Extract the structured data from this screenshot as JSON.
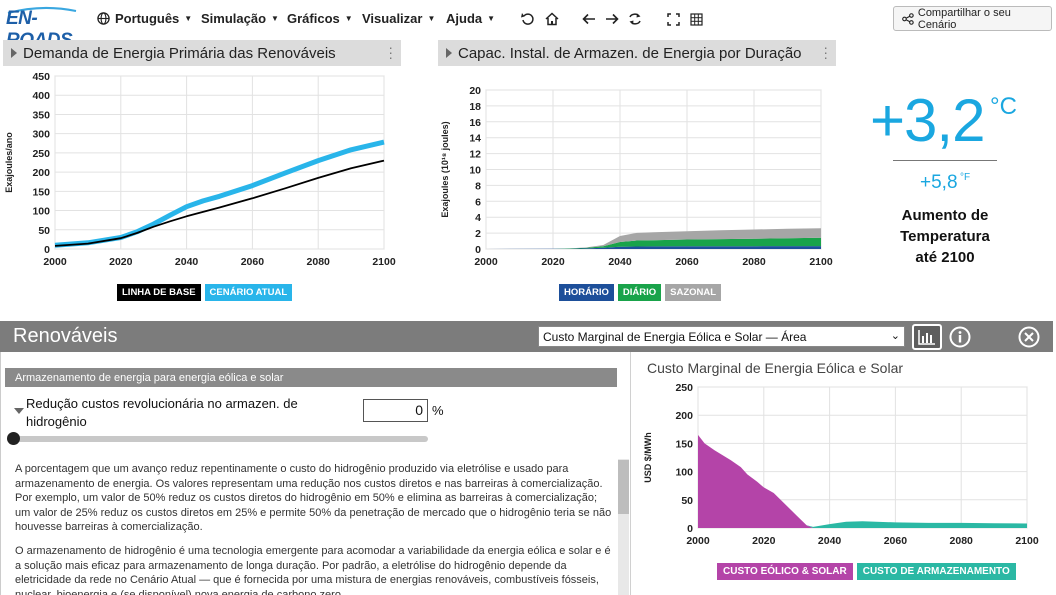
{
  "app": {
    "logo": "EN-ROADS",
    "menu": [
      {
        "label": "Português",
        "icon": "globe-icon"
      },
      {
        "label": "Simulação"
      },
      {
        "label": "Gráficos"
      },
      {
        "label": "Visualizar"
      },
      {
        "label": "Ajuda"
      }
    ],
    "share_label": "Compartilhar o seu Cenário"
  },
  "graph_left": {
    "title": "Demanda de Energia Primária das Renováveis",
    "ylabel": "Exajoules/ano",
    "legend": [
      {
        "label": "LINHA DE BASE",
        "color": "#000000"
      },
      {
        "label": "CENÁRIO ATUAL",
        "color": "#29b5ea"
      }
    ]
  },
  "graph_mid": {
    "title": "Capac. Instal. de Armazen. de Energia por Duração",
    "ylabel": "Exajoules (10¹⁸ joules)",
    "legend": [
      {
        "label": "HORÁRIO",
        "color": "#1d4f9a"
      },
      {
        "label": "DIÁRIO",
        "color": "#19a34a"
      },
      {
        "label": "SAZONAL",
        "color": "#a6a6a6"
      }
    ]
  },
  "temperature": {
    "celsius": "+3,2",
    "celsius_unit": "°C",
    "fahrenheit": "+5,8",
    "fahrenheit_unit": "°F",
    "label_line1": "Aumento de",
    "label_line2": "Temperatura",
    "label_line3": "até 2100"
  },
  "panel": {
    "title": "Renováveis",
    "select_value": "Custo Marginal de Energia Eólica e Solar — Área",
    "subsection": "Armazenamento de energia para energia eólica e solar",
    "slider_title": "Redução custos revolucionária no armazen. de hidrogênio",
    "slider_value": "0",
    "slider_unit": "%",
    "slider_level_percent": 0,
    "desc1": "A porcentagem que um avanço reduz repentinamente o custo do hidrogênio produzido via eletrólise e usado para armazenamento de energia. Os valores representam uma redução nos custos diretos e nas barreiras à comercialização. Por exemplo, um valor de 50% reduz os custos diretos do hidrogênio em 50% e elimina as barreiras à comercialização; um valor de 25% reduz os custos diretos em 25% e permite 50% da penetração de mercado que o hidrogênio teria se não houvesse barreiras à comercialização.",
    "desc2": "O armazenamento de hidrogênio é uma tecnologia emergente para acomodar a variabilidade da energia eólica e solar e é a solução mais eficaz para armazenamento de longa duração. Por padrão, a eletrólise do hidrogênio depende da eletricidade da rede no Cenário Atual — que é fornecida por uma mistura de energias renováveis, combustíveis fósseis, nuclear, bioenergia e (se disponível) nova energia de carbono zero.",
    "right_chart_title": "Custo Marginal de Energia Eólica e Solar",
    "right_ylabel": "USD $/MWh",
    "right_legend": [
      {
        "label": "CUSTO EÓLICO & SOLAR",
        "color": "#b444a8"
      },
      {
        "label": "CUSTO DE ARMAZENAMENTO",
        "color": "#2bb8a4"
      }
    ]
  },
  "chart_data": [
    {
      "type": "line",
      "title": "Demanda de Energia Primária das Renováveis",
      "ylabel": "Exajoules/ano",
      "xlim": [
        2000,
        2100
      ],
      "ylim": [
        0,
        450
      ],
      "xticks": [
        2000,
        2020,
        2040,
        2060,
        2080,
        2100
      ],
      "yticks": [
        0,
        50,
        100,
        150,
        200,
        250,
        300,
        350,
        400,
        450
      ],
      "grid": true,
      "series": [
        {
          "name": "LINHA DE BASE",
          "color": "#000000",
          "x": [
            2000,
            2010,
            2020,
            2025,
            2030,
            2035,
            2040,
            2050,
            2060,
            2070,
            2080,
            2090,
            2100
          ],
          "y": [
            8,
            14,
            28,
            42,
            58,
            72,
            85,
            108,
            132,
            158,
            185,
            210,
            230
          ]
        },
        {
          "name": "CENÁRIO ATUAL",
          "color": "#29b5ea",
          "x": [
            2000,
            2010,
            2020,
            2025,
            2030,
            2035,
            2040,
            2045,
            2050,
            2060,
            2070,
            2080,
            2090,
            2100
          ],
          "y": [
            10,
            16,
            30,
            45,
            65,
            88,
            110,
            125,
            137,
            165,
            198,
            230,
            258,
            278
          ]
        }
      ]
    },
    {
      "type": "area",
      "title": "Capac. Instal. de Armazen. de Energia por Duração",
      "ylabel": "Exajoules (10¹⁸ joules)",
      "xlim": [
        2000,
        2100
      ],
      "ylim": [
        0,
        20
      ],
      "xticks": [
        2000,
        2020,
        2040,
        2060,
        2080,
        2100
      ],
      "yticks": [
        0,
        2,
        4,
        6,
        8,
        10,
        12,
        14,
        16,
        18,
        20
      ],
      "grid": true,
      "stacked": true,
      "x": [
        2000,
        2020,
        2025,
        2030,
        2035,
        2040,
        2045,
        2050,
        2060,
        2070,
        2080,
        2090,
        2100
      ],
      "series": [
        {
          "name": "HORÁRIO",
          "color": "#1d4f9a",
          "values": [
            0,
            0.02,
            0.04,
            0.08,
            0.15,
            0.28,
            0.32,
            0.33,
            0.34,
            0.35,
            0.35,
            0.36,
            0.37
          ]
        },
        {
          "name": "DIÁRIO",
          "color": "#19a34a",
          "values": [
            0,
            0.01,
            0.03,
            0.08,
            0.2,
            0.6,
            0.75,
            0.78,
            0.85,
            0.9,
            0.95,
            1.0,
            1.05
          ]
        },
        {
          "name": "SAZONAL",
          "color": "#a6a6a6",
          "values": [
            0,
            0,
            0.01,
            0.04,
            0.15,
            0.75,
            0.95,
            1.0,
            1.05,
            1.1,
            1.15,
            1.18,
            1.2
          ]
        }
      ]
    },
    {
      "type": "area",
      "title": "Custo Marginal de Energia Eólica e Solar",
      "ylabel": "USD $/MWh",
      "xlim": [
        2000,
        2100
      ],
      "ylim": [
        0,
        250
      ],
      "xticks": [
        2000,
        2020,
        2040,
        2060,
        2080,
        2100
      ],
      "yticks": [
        0,
        50,
        100,
        150,
        200,
        250
      ],
      "grid": true,
      "stacked": true,
      "x": [
        2000,
        2002,
        2005,
        2010,
        2013,
        2015,
        2018,
        2020,
        2023,
        2026,
        2030,
        2033,
        2035,
        2040,
        2045,
        2050,
        2060,
        2070,
        2080,
        2090,
        2100
      ],
      "series": [
        {
          "name": "CUSTO EÓLICO & SOLAR",
          "color": "#b444a8",
          "values": [
            165,
            150,
            138,
            120,
            108,
            95,
            82,
            72,
            62,
            45,
            22,
            5,
            0,
            0,
            0,
            0,
            0,
            0,
            0,
            0,
            0
          ]
        },
        {
          "name": "CUSTO DE ARMAZENAMENTO",
          "color": "#2bb8a4",
          "values": [
            0,
            0,
            0,
            0,
            0,
            0,
            0,
            0,
            0,
            0,
            0,
            0,
            2,
            7,
            11,
            12,
            10,
            9,
            9,
            8.5,
            8
          ]
        }
      ]
    }
  ]
}
